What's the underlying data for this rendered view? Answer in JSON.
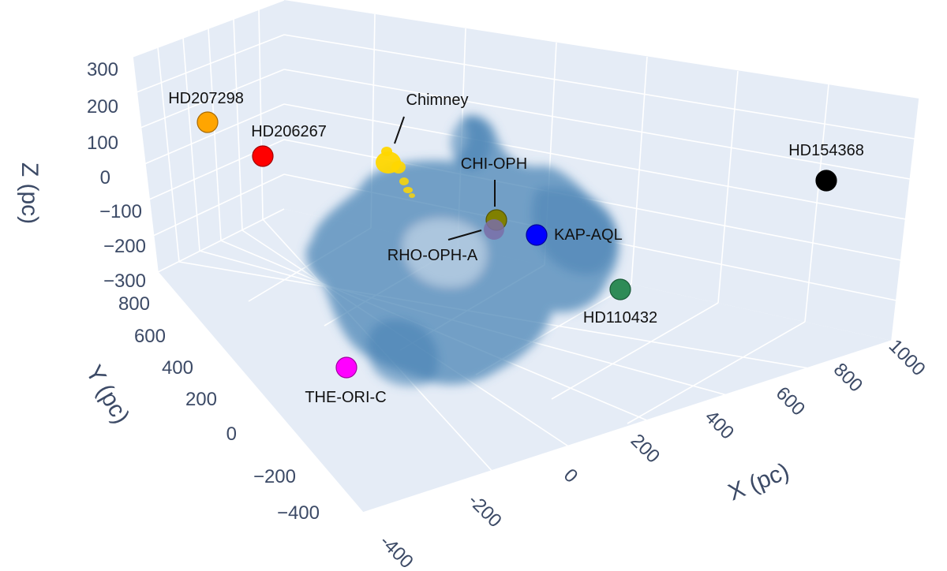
{
  "chart_data": {
    "type": "scatter",
    "projection": "3d",
    "axes": {
      "x": {
        "label": "X (pc)",
        "range": [
          -400,
          1000
        ],
        "ticks": [
          "-400",
          "-200",
          "0",
          "200",
          "400",
          "600",
          "800",
          "1000"
        ]
      },
      "y": {
        "label": "Y (pc)",
        "range": [
          -400,
          800
        ],
        "ticks": [
          "800",
          "600",
          "400",
          "200",
          "0",
          "−200",
          "−400"
        ]
      },
      "z": {
        "label": "Z (pc)",
        "range": [
          -300,
          300
        ],
        "ticks": [
          "300",
          "200",
          "100",
          "0",
          "−100",
          "−200",
          "−300"
        ]
      }
    },
    "grid": true,
    "background": "#e5ecf6",
    "cloud_color": "#4682b4",
    "stars": [
      {
        "name": "HD207298",
        "color": "#ffa500",
        "label": "HD207298"
      },
      {
        "name": "HD206267",
        "color": "#ff0000",
        "label": "HD206267"
      },
      {
        "name": "Chimney",
        "color": "#ffd700",
        "label": "Chimney"
      },
      {
        "name": "CHI-OPH",
        "color": "#808000",
        "label": "CHI-OPH"
      },
      {
        "name": "RHO-OPH-A",
        "color": "#7a6fa8",
        "label": "RHO-OPH-A"
      },
      {
        "name": "KAP-AQL",
        "color": "#0000ff",
        "label": "KAP-AQL"
      },
      {
        "name": "HD110432",
        "color": "#2e8b57",
        "label": "HD110432"
      },
      {
        "name": "HD154368",
        "color": "#000000",
        "label": "HD154368"
      },
      {
        "name": "THE-ORI-C",
        "color": "#ff00ff",
        "label": "THE-ORI-C"
      }
    ]
  }
}
